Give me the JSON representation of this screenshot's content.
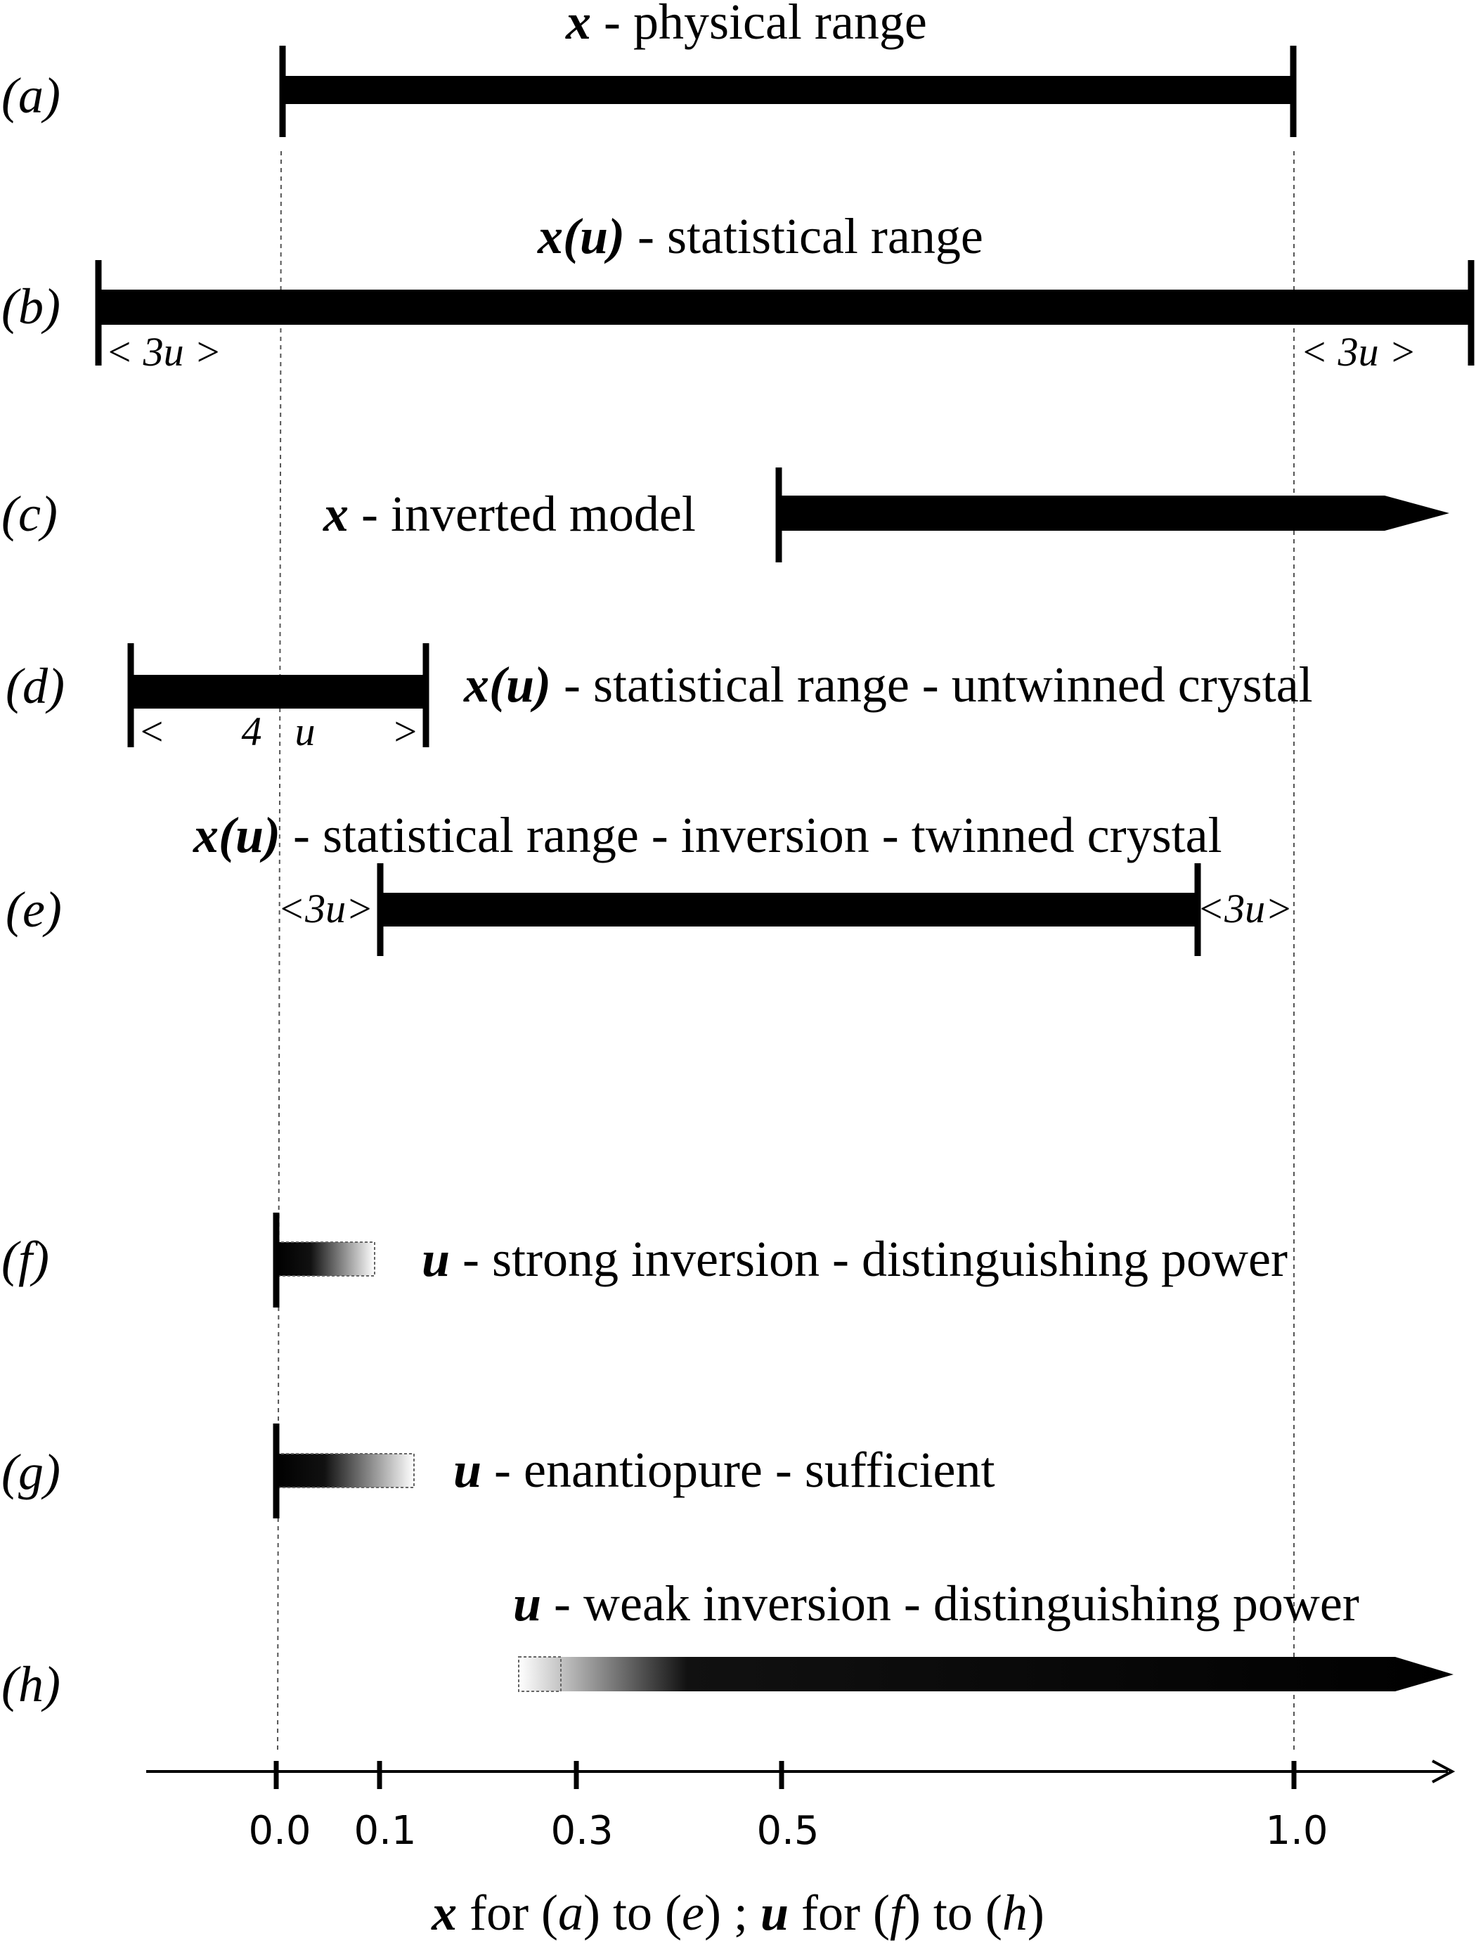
{
  "rows": {
    "a": {
      "label": "(a)",
      "title_bold": "x",
      "title_rest": " - physical range"
    },
    "b": {
      "label": "(b)",
      "title_bold": "x(u)",
      "title_rest": " - statistical range",
      "left_interval": "< 3u >",
      "right_interval": "< 3u >"
    },
    "c": {
      "label": "(c)",
      "title_bold": "x",
      "title_rest": " - inverted model"
    },
    "d": {
      "label": "(d)",
      "title_bold": "x(u)",
      "title_rest": " - statistical range - untwinned crystal",
      "interval": "< 4u >"
    },
    "e": {
      "label": "(e)",
      "title_bold": "x(u)",
      "title_rest": " - statistical range - inversion - twinned crystal",
      "left_interval": "<3u>",
      "right_interval": "<3u>"
    },
    "f": {
      "label": "(f)",
      "title_bold": "u",
      "title_rest": " - strong inversion - distinguishing power"
    },
    "g": {
      "label": "(g)",
      "title_bold": "u",
      "title_rest": " - enantiopure - sufficient"
    },
    "h": {
      "label": "(h)",
      "title_bold": "u",
      "title_rest": " - weak inversion - distinguishing power"
    }
  },
  "axis": {
    "ticks": [
      "0.0",
      "0.1",
      "0.3",
      "0.5",
      "1.0"
    ],
    "caption": {
      "x_sym": "x",
      "part1": " for (",
      "a": "a",
      "part2": ") to (",
      "e": "e",
      "part3": ") ;  ",
      "u_sym": "u",
      "part4": " for (",
      "f": "f",
      "part5": ") to (",
      "h": "h",
      "part6": ")"
    }
  }
}
